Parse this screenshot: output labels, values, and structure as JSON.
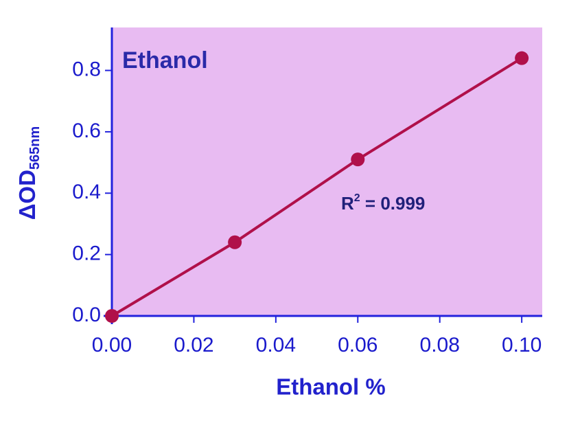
{
  "chart_data": {
    "type": "line",
    "panel_label": "Ethanol",
    "x_label": "Ethanol %",
    "y_label": "ΔOD",
    "y_label_sub": "565nm",
    "annotation": {
      "base": "R",
      "sup": "2",
      "rest": " = 0.999"
    },
    "x": [
      0,
      0.03,
      0.06,
      0.1
    ],
    "series": [
      {
        "color": "#b0104a",
        "values": [
          0,
          0.24,
          0.51,
          0.84
        ]
      }
    ],
    "xlim": [
      0,
      0.105
    ],
    "ylim": [
      0,
      0.94
    ],
    "xticks": [
      {
        "value": 0,
        "label": "0.00"
      },
      {
        "value": 0.02,
        "label": "0.02"
      },
      {
        "value": 0.04,
        "label": "0.04"
      },
      {
        "value": 0.06,
        "label": "0.06"
      },
      {
        "value": 0.08,
        "label": "0.08"
      },
      {
        "value": 0.1,
        "label": "0.10"
      }
    ],
    "yticks": [
      {
        "value": 0,
        "label": "0.0"
      },
      0.2,
      0.4,
      0.6,
      0.8
    ],
    "background": "#e8bbf2",
    "axis_color": "#2222dd"
  }
}
